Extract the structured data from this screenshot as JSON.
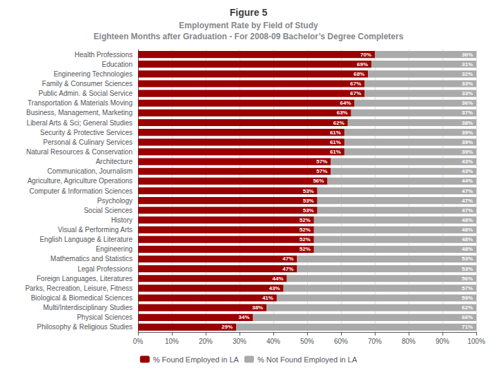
{
  "chart_data": {
    "type": "bar",
    "orientation": "horizontal",
    "stacked": true,
    "data_labels": true,
    "grid": true,
    "legend": "bottom",
    "title": "Figure 5",
    "subtitle": [
      "Employment Rate by Field of Study",
      "Eighteen Months after Graduation - For 2008-09 Bachelor’s Degree Completers"
    ],
    "categories": [
      "Health Professions",
      "Education",
      "Engineering Technologies",
      "Family & Consumer Sciences",
      "Public Admin. & Social Service",
      "Transportation & Materials Moving",
      "Business, Management, Marketing",
      "Liberal Arts & Sci; General Studies",
      "Security & Protective Services",
      "Personal & Culinary Services",
      "Natural Resources & Conservation",
      "Architecture",
      "Communication, Journalism",
      "Agriculture, Agriculture Operations",
      "Computer & Information Sciences",
      "Psychology",
      "Social Sciences",
      "History",
      "Visual & Performing Arts",
      "English Language & Literature",
      "Engineering",
      "Mathematics and Statistics",
      "Legal Professions",
      "Foreign Languages, Literatures",
      "Parks, Recreation, Leisure, Fitness",
      "Biological & Biomedical Sciences",
      "Multi/Interdisciplinary Studies",
      "Physical Sciences",
      "Philosophy & Religious Studies"
    ],
    "series": [
      {
        "name": "% Found Employed in LA",
        "color": "#990000",
        "values": [
          70,
          69,
          68,
          67,
          67,
          64,
          63,
          62,
          61,
          61,
          61,
          57,
          57,
          56,
          53,
          53,
          53,
          52,
          52,
          52,
          52,
          47,
          47,
          44,
          43,
          41,
          38,
          34,
          29
        ],
        "value_labels": [
          "70%",
          "69%",
          "68%",
          "67%",
          "67%",
          "64%",
          "63%",
          "62%",
          "61%",
          "61%",
          "61%",
          "57%",
          "57%",
          "56%",
          "53%",
          "53%",
          "53%",
          "52%",
          "52%",
          "52%",
          "52%",
          "47%",
          "47%",
          "44%",
          "43%",
          "41%",
          "38%",
          "34%",
          "29%"
        ]
      },
      {
        "name": "% Not Found Employed in LA",
        "color": "#aaaaaa",
        "values": [
          30,
          31,
          32,
          33,
          33,
          36,
          37,
          38,
          39,
          39,
          39,
          43,
          43,
          44,
          47,
          47,
          47,
          48,
          48,
          48,
          48,
          53,
          53,
          56,
          57,
          59,
          62,
          66,
          71
        ],
        "value_labels": [
          "30%",
          "31%",
          "32%",
          "33%",
          "33%",
          "36%",
          "37%",
          "38%",
          "39%",
          "39%",
          "39%",
          "43%",
          "43%",
          "44%",
          "47%",
          "47%",
          "47%",
          "48%",
          "48%",
          "48%",
          "48%",
          "53%",
          "53%",
          "56%",
          "57%",
          "59%",
          "62%",
          "66%",
          "71%"
        ]
      }
    ],
    "xlim": [
      0,
      100
    ],
    "xticks": [
      {
        "value": 0,
        "label": "0%"
      },
      {
        "value": 10,
        "label": "10%"
      },
      {
        "value": 20,
        "label": "20%"
      },
      {
        "value": 30,
        "label": "30%"
      },
      {
        "value": 40,
        "label": "40%"
      },
      {
        "value": 50,
        "label": "50%"
      },
      {
        "value": 60,
        "label": "60%"
      },
      {
        "value": 70,
        "label": "70%"
      },
      {
        "value": 80,
        "label": "80%"
      },
      {
        "value": 90,
        "label": "90%"
      },
      {
        "value": 100,
        "label": "100%"
      }
    ]
  }
}
